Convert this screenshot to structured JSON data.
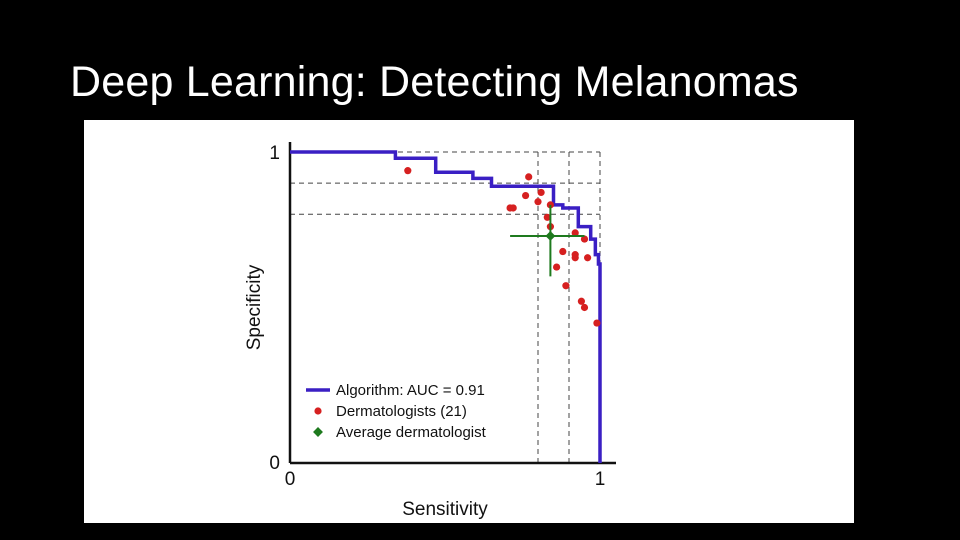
{
  "slide": {
    "title": "Deep Learning: Detecting Melanomas"
  },
  "colors": {
    "background": "#000000",
    "panel": "#ffffff",
    "algorithm": "#3a1fc4",
    "dermatologists": "#d62020",
    "average": "#1e7a1e",
    "guides": "#444444"
  },
  "chart_data": {
    "type": "line",
    "xlabel": "Sensitivity",
    "ylabel": "Specificity",
    "xlim": [
      0,
      1
    ],
    "ylim": [
      0,
      1
    ],
    "x_ticks": [
      "0",
      "1"
    ],
    "y_ticks": [
      "0",
      "1"
    ],
    "legend_position": "bottom-left",
    "series": [
      {
        "name": "Algorithm: AUC = 0.91",
        "kind": "step-line",
        "points": [
          [
            0.0,
            1.0
          ],
          [
            0.34,
            1.0
          ],
          [
            0.34,
            0.98
          ],
          [
            0.47,
            0.98
          ],
          [
            0.47,
            0.935
          ],
          [
            0.59,
            0.935
          ],
          [
            0.59,
            0.915
          ],
          [
            0.65,
            0.915
          ],
          [
            0.65,
            0.89
          ],
          [
            0.85,
            0.89
          ],
          [
            0.85,
            0.83
          ],
          [
            0.88,
            0.83
          ],
          [
            0.88,
            0.82
          ],
          [
            0.93,
            0.82
          ],
          [
            0.93,
            0.76
          ],
          [
            0.97,
            0.76
          ],
          [
            0.97,
            0.72
          ],
          [
            0.985,
            0.72
          ],
          [
            0.985,
            0.67
          ],
          [
            0.995,
            0.67
          ],
          [
            0.995,
            0.64
          ],
          [
            1.0,
            0.64
          ],
          [
            1.0,
            0.0
          ]
        ]
      },
      {
        "name": "Dermatologists (21)",
        "kind": "scatter",
        "points": [
          [
            0.38,
            0.94
          ],
          [
            0.77,
            0.92
          ],
          [
            0.76,
            0.86
          ],
          [
            0.81,
            0.87
          ],
          [
            0.8,
            0.84
          ],
          [
            0.84,
            0.83
          ],
          [
            0.71,
            0.82
          ],
          [
            0.72,
            0.82
          ],
          [
            0.83,
            0.79
          ],
          [
            0.92,
            0.74
          ],
          [
            0.95,
            0.72
          ],
          [
            0.88,
            0.68
          ],
          [
            0.92,
            0.67
          ],
          [
            0.96,
            0.66
          ],
          [
            0.86,
            0.63
          ],
          [
            0.89,
            0.57
          ],
          [
            0.94,
            0.52
          ],
          [
            0.95,
            0.5
          ],
          [
            0.99,
            0.45
          ],
          [
            0.92,
            0.66
          ],
          [
            0.84,
            0.76
          ]
        ]
      },
      {
        "name": "Average dermatologist",
        "kind": "point-with-error",
        "x": 0.84,
        "y": 0.73,
        "x_err": [
          0.71,
          0.95
        ],
        "y_err": [
          0.6,
          0.83
        ]
      }
    ],
    "guide_lines": {
      "horizontal": [
        1.0,
        0.9,
        0.8
      ],
      "vertical": [
        0.8,
        0.9,
        1.0
      ]
    }
  }
}
